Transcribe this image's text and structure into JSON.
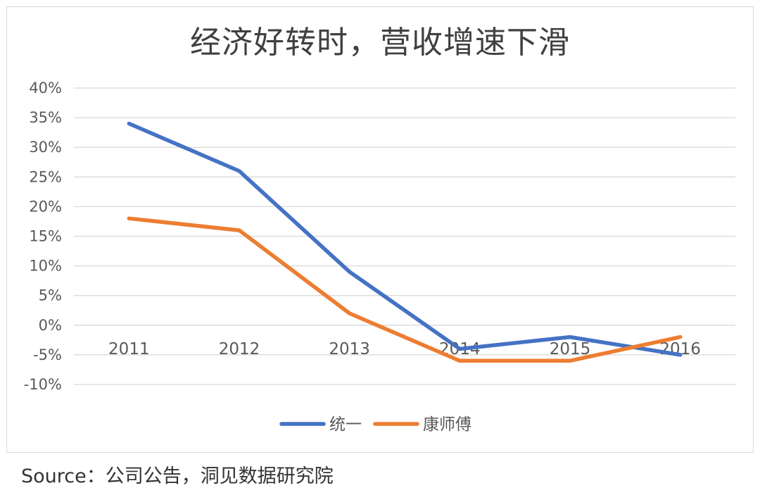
{
  "chart_data": {
    "type": "line",
    "title": "经济好转时，营收增速下滑",
    "categories": [
      "2011",
      "2012",
      "2013",
      "2014",
      "2015",
      "2016"
    ],
    "series": [
      {
        "name": "统一",
        "color": "#4472c4",
        "values": [
          34,
          26,
          9,
          -4,
          -2,
          -5
        ]
      },
      {
        "name": "康师傅",
        "color": "#ed7d31",
        "values": [
          18,
          16,
          2,
          -6,
          -6,
          -2
        ]
      }
    ],
    "yticks": [
      "40%",
      "35%",
      "30%",
      "25%",
      "20%",
      "15%",
      "10%",
      "5%",
      "0%",
      "-5%",
      "-10%"
    ],
    "ylim": [
      -10,
      40
    ],
    "ystep": 5,
    "grid": true,
    "legend": "bottom",
    "xlabel": "",
    "ylabel": ""
  },
  "source": "Source：公司公告，洞见数据研究院"
}
